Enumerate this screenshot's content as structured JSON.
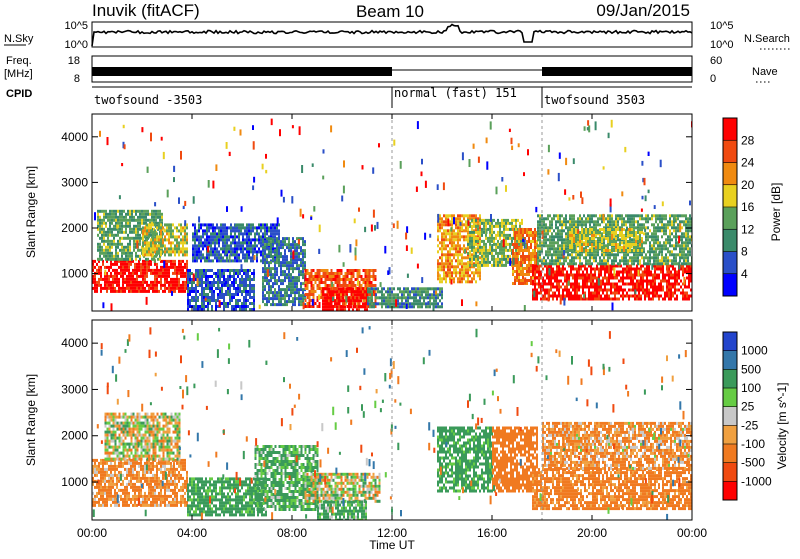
{
  "header": {
    "station": "Inuvik (fitACF)",
    "beam": "Beam 10",
    "date": "09/Jan/2015"
  },
  "summary": {
    "nsky_label": "N.Sky",
    "nsearch_label": "N.Search",
    "nsky_ticks": [
      "10^5",
      "10^0"
    ],
    "nsearch_ticks": [
      "10^5",
      "10^0"
    ],
    "freq_label": "Freq.",
    "freq_unit": "[MHz]",
    "freq_ticks": [
      "18",
      "8"
    ],
    "nave_label": "Nave",
    "nave_ticks": [
      "60",
      "0"
    ],
    "cpid_label": "CPID",
    "cpid_segments": [
      {
        "label": "twofsound -3503",
        "start": 0,
        "end": 12
      },
      {
        "label": "normal (fast) 151",
        "start": 12,
        "end": 18
      },
      {
        "label": "twofsound 3503",
        "start": 18,
        "end": 24
      }
    ]
  },
  "axes": {
    "x_ticks": [
      "00:00",
      "04:00",
      "08:00",
      "12:00",
      "16:00",
      "20:00",
      "00:00"
    ],
    "x_label": "Time UT",
    "y_label": "Slant Range [km]",
    "y_ticks": [
      "1000",
      "2000",
      "3000",
      "4000"
    ]
  },
  "colorbars": {
    "power": {
      "label": "Power [dB]",
      "ticks": [
        "28",
        "24",
        "20",
        "16",
        "12",
        "8",
        "4"
      ],
      "colors": [
        "#0000ff",
        "#2a4fc8",
        "#3a8a6a",
        "#5aa05a",
        "#e8d020",
        "#f08a10",
        "#f04a10",
        "#ff0000"
      ]
    },
    "velocity": {
      "label": "Velocity [m s^-1]",
      "ticks": [
        "1000",
        "500",
        "100",
        "25",
        "-25",
        "-100",
        "-500",
        "-1000"
      ],
      "colors": [
        "#2244cc",
        "#3377aa",
        "#3a9a5a",
        "#66cc44",
        "#c8c8c8",
        "#f0a040",
        "#f07a20",
        "#f04a10",
        "#ff0000"
      ]
    }
  },
  "chart_data": [
    {
      "type": "heatmap",
      "title": "Power [dB]",
      "xlabel": "Time UT",
      "ylabel": "Slant Range [km]",
      "xlim": [
        0,
        24
      ],
      "ylim": [
        180,
        4500
      ],
      "zlim": [
        0,
        30
      ],
      "blobs": [
        {
          "t0": 0.0,
          "t1": 3.8,
          "r0": 600,
          "r1": 1300,
          "z": 28
        },
        {
          "t0": 0.2,
          "t1": 2.8,
          "r0": 1300,
          "r1": 2400,
          "z": 12
        },
        {
          "t0": 2.0,
          "t1": 3.8,
          "r0": 1400,
          "r1": 2100,
          "z": 16
        },
        {
          "t0": 3.8,
          "t1": 6.5,
          "r0": 200,
          "r1": 1100,
          "z": 6
        },
        {
          "t0": 4.0,
          "t1": 7.5,
          "r0": 1300,
          "r1": 2100,
          "z": 6
        },
        {
          "t0": 6.8,
          "t1": 8.5,
          "r0": 300,
          "r1": 1800,
          "z": 8
        },
        {
          "t0": 8.5,
          "t1": 11.3,
          "r0": 250,
          "r1": 1100,
          "z": 24
        },
        {
          "t0": 9.2,
          "t1": 11.0,
          "r0": 200,
          "r1": 700,
          "z": 29
        },
        {
          "t0": 11.0,
          "t1": 14.0,
          "r0": 300,
          "r1": 700,
          "z": 10
        },
        {
          "t0": 13.8,
          "t1": 15.5,
          "r0": 800,
          "r1": 2300,
          "z": 20
        },
        {
          "t0": 15.0,
          "t1": 17.2,
          "r0": 1200,
          "r1": 2200,
          "z": 14
        },
        {
          "t0": 16.8,
          "t1": 17.8,
          "r0": 800,
          "r1": 2000,
          "z": 22
        },
        {
          "t0": 17.6,
          "t1": 24.0,
          "r0": 450,
          "r1": 1200,
          "z": 28
        },
        {
          "t0": 17.8,
          "t1": 24.0,
          "r0": 1200,
          "r1": 2300,
          "z": 12
        },
        {
          "t0": 19.0,
          "t1": 22.0,
          "r0": 1500,
          "r1": 2000,
          "z": 16
        }
      ]
    },
    {
      "type": "heatmap",
      "title": "Velocity [m s^-1]",
      "xlabel": "Time UT",
      "ylabel": "Slant Range [km]",
      "xlim": [
        0,
        24
      ],
      "ylim": [
        180,
        4500
      ],
      "zlim": [
        -1000,
        1000
      ],
      "blobs": [
        {
          "t0": 0.0,
          "t1": 3.8,
          "r0": 500,
          "r1": 1500,
          "z": -150
        },
        {
          "t0": 0.5,
          "t1": 3.5,
          "r0": 1500,
          "r1": 2500,
          "z": 0
        },
        {
          "t0": 3.8,
          "t1": 7.0,
          "r0": 300,
          "r1": 1100,
          "z": 200
        },
        {
          "t0": 6.5,
          "t1": 9.0,
          "r0": 400,
          "r1": 1800,
          "z": 150
        },
        {
          "t0": 8.5,
          "t1": 11.5,
          "r0": 600,
          "r1": 1200,
          "z": 0
        },
        {
          "t0": 9.0,
          "t1": 11.0,
          "r0": 200,
          "r1": 600,
          "z": 150
        },
        {
          "t0": 13.8,
          "t1": 16.0,
          "r0": 800,
          "r1": 2200,
          "z": 200
        },
        {
          "t0": 16.0,
          "t1": 17.8,
          "r0": 800,
          "r1": 2200,
          "z": -300
        },
        {
          "t0": 17.6,
          "t1": 24.0,
          "r0": 450,
          "r1": 1300,
          "z": -200
        },
        {
          "t0": 18.0,
          "t1": 24.0,
          "r0": 1300,
          "r1": 2300,
          "z": -120
        }
      ]
    }
  ]
}
